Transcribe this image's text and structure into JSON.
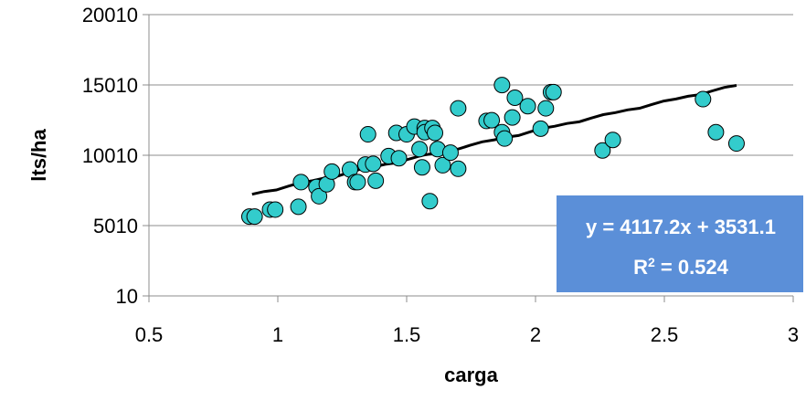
{
  "chart_data": {
    "type": "scatter",
    "xlabel": "carga",
    "ylabel": "lts/ha",
    "xlim": [
      0.5,
      3
    ],
    "ylim": [
      10,
      20010
    ],
    "x_ticks": [
      "0.5",
      "1",
      "1.5",
      "2",
      "2.5",
      "3"
    ],
    "y_ticks": [
      "10",
      "5010",
      "10010",
      "15010",
      "20010"
    ],
    "grid": "horizontal",
    "legend": "none",
    "marker_color": "#33CCCC",
    "trendline_color": "#000000",
    "trendline": {
      "slope": 4117.2,
      "intercept": 3531.1,
      "x_start": 0.9,
      "x_end": 2.78
    },
    "equation": {
      "line1": "y = 4117.2x + 3531.1",
      "r2_prefix": "R",
      "r2_exp": "2",
      "r2_suffix": " = 0.524",
      "box_color": "#5B8FD8"
    },
    "points": [
      {
        "x": 0.89,
        "y": 5650
      },
      {
        "x": 0.91,
        "y": 5650
      },
      {
        "x": 0.97,
        "y": 6150
      },
      {
        "x": 0.99,
        "y": 6150
      },
      {
        "x": 1.08,
        "y": 6350
      },
      {
        "x": 1.09,
        "y": 8100
      },
      {
        "x": 1.15,
        "y": 7750
      },
      {
        "x": 1.16,
        "y": 7100
      },
      {
        "x": 1.19,
        "y": 7950
      },
      {
        "x": 1.21,
        "y": 8850
      },
      {
        "x": 1.28,
        "y": 9000
      },
      {
        "x": 1.3,
        "y": 8100
      },
      {
        "x": 1.31,
        "y": 8100
      },
      {
        "x": 1.34,
        "y": 9350
      },
      {
        "x": 1.35,
        "y": 11500
      },
      {
        "x": 1.37,
        "y": 9400
      },
      {
        "x": 1.38,
        "y": 8200
      },
      {
        "x": 1.43,
        "y": 9950
      },
      {
        "x": 1.46,
        "y": 11600
      },
      {
        "x": 1.47,
        "y": 9800
      },
      {
        "x": 1.5,
        "y": 11500
      },
      {
        "x": 1.53,
        "y": 12050
      },
      {
        "x": 1.55,
        "y": 10450
      },
      {
        "x": 1.56,
        "y": 9150
      },
      {
        "x": 1.57,
        "y": 11950
      },
      {
        "x": 1.57,
        "y": 11650
      },
      {
        "x": 1.59,
        "y": 6750
      },
      {
        "x": 1.6,
        "y": 11950
      },
      {
        "x": 1.61,
        "y": 11600
      },
      {
        "x": 1.62,
        "y": 10450
      },
      {
        "x": 1.64,
        "y": 9300
      },
      {
        "x": 1.67,
        "y": 10200
      },
      {
        "x": 1.7,
        "y": 13350
      },
      {
        "x": 1.7,
        "y": 9050
      },
      {
        "x": 1.81,
        "y": 12450
      },
      {
        "x": 1.83,
        "y": 12500
      },
      {
        "x": 1.87,
        "y": 11650
      },
      {
        "x": 1.87,
        "y": 15000
      },
      {
        "x": 1.88,
        "y": 11200
      },
      {
        "x": 1.91,
        "y": 12700
      },
      {
        "x": 1.92,
        "y": 14100
      },
      {
        "x": 1.97,
        "y": 13500
      },
      {
        "x": 2.02,
        "y": 11900
      },
      {
        "x": 2.04,
        "y": 13350
      },
      {
        "x": 2.06,
        "y": 14500
      },
      {
        "x": 2.07,
        "y": 14500
      },
      {
        "x": 2.26,
        "y": 10350
      },
      {
        "x": 2.3,
        "y": 11100
      },
      {
        "x": 2.65,
        "y": 14000
      },
      {
        "x": 2.7,
        "y": 11650
      },
      {
        "x": 2.78,
        "y": 10850
      }
    ]
  }
}
